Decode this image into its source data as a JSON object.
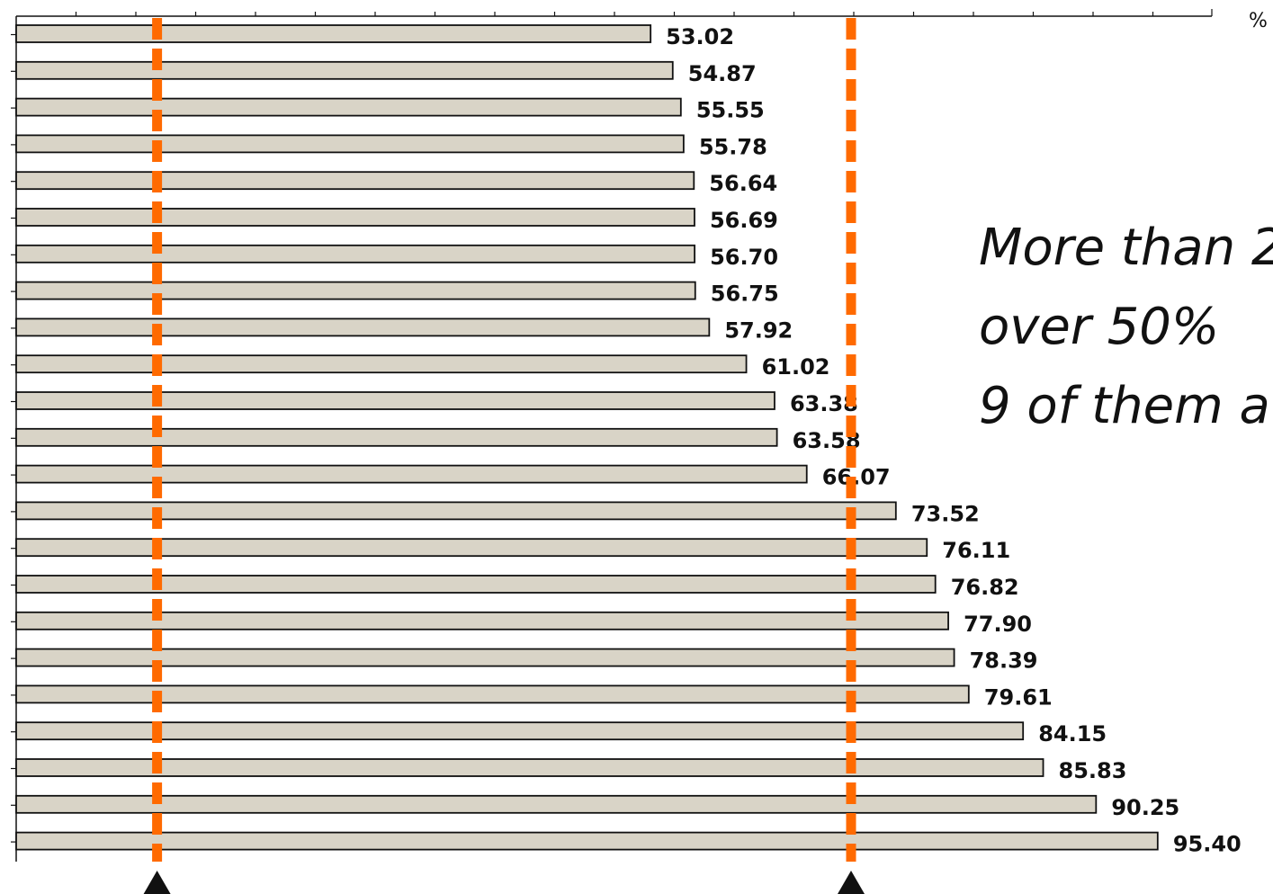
{
  "chart_data": {
    "type": "bar",
    "orientation": "horizontal",
    "unit_label": "%",
    "xlim": [
      0,
      100
    ],
    "values": [
      53.02,
      54.87,
      55.55,
      55.78,
      56.64,
      56.69,
      56.7,
      56.75,
      57.92,
      61.02,
      63.38,
      63.58,
      66.07,
      73.52,
      76.11,
      76.82,
      77.9,
      78.39,
      79.61,
      84.15,
      85.83,
      90.25,
      95.4
    ],
    "value_labels": [
      "53.02",
      "54.87",
      "55.55",
      "55.78",
      "56.64",
      "56.69",
      "56.70",
      "56.75",
      "57.92",
      "61.02",
      "63.38",
      "63.58",
      "66.07",
      "73.52",
      "76.11",
      "76.82",
      "77.90",
      "78.39",
      "79.61",
      "84.15",
      "85.83",
      "90.25",
      "95.40"
    ],
    "reference_lines": [
      12,
      70
    ],
    "bar_color": "#d9d4c7",
    "bar_outline": "#111111",
    "reference_line_color": "#ff6a00",
    "grid": false,
    "annotation": [
      "More than 2",
      "over 50%",
      "9 of them a"
    ]
  }
}
